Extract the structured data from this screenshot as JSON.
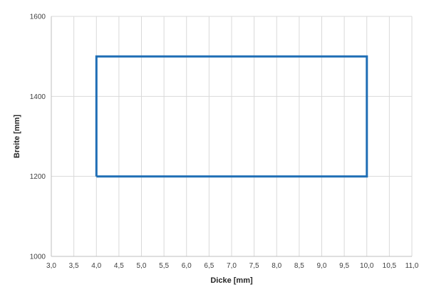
{
  "chart_data": {
    "type": "line",
    "title": "",
    "xlabel": "Dicke [mm]",
    "ylabel": "Breite [mm]",
    "xlim": [
      3.0,
      11.0
    ],
    "ylim": [
      1000,
      1600
    ],
    "x_ticks": [
      3.0,
      3.5,
      4.0,
      4.5,
      5.0,
      5.5,
      6.0,
      6.5,
      7.0,
      7.5,
      8.0,
      8.5,
      9.0,
      9.5,
      10.0,
      10.5,
      11.0
    ],
    "x_tick_labels": [
      "3,0",
      "3,5",
      "4,0",
      "4,5",
      "5,0",
      "5,5",
      "6,0",
      "6,5",
      "7,0",
      "7,5",
      "8,0",
      "8,5",
      "9,0",
      "9,5",
      "10,0",
      "10,5",
      "11,0"
    ],
    "y_ticks": [
      1000,
      1200,
      1400,
      1600
    ],
    "y_tick_labels": [
      "1000",
      "1200",
      "1400",
      "1600"
    ],
    "grid": true,
    "legend": "none",
    "series": [
      {
        "color": "#1f6eb5",
        "points": [
          {
            "x": 4.0,
            "y": 1200
          },
          {
            "x": 4.0,
            "y": 1500
          },
          {
            "x": 10.0,
            "y": 1500
          },
          {
            "x": 10.0,
            "y": 1200
          },
          {
            "x": 4.0,
            "y": 1200
          }
        ]
      }
    ],
    "grid_color": "#d9d9d9",
    "axis_color": "#bfbfbf"
  }
}
